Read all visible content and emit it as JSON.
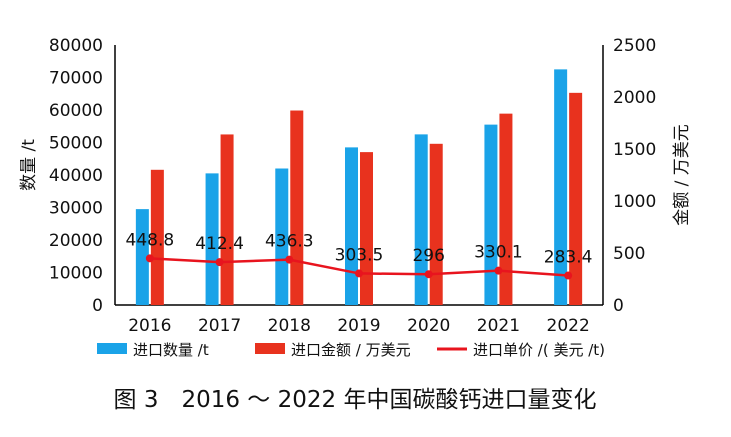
{
  "chart_data": {
    "type": "bar",
    "categories": [
      "2016",
      "2017",
      "2018",
      "2019",
      "2020",
      "2021",
      "2022"
    ],
    "series": [
      {
        "name": "进口数量 /t",
        "axis": "left",
        "kind": "bar",
        "color": "#1aa3e8",
        "values": [
          29500,
          40500,
          42000,
          48500,
          52500,
          55500,
          72500
        ]
      },
      {
        "name": "进口金额 / 万美元",
        "axis": "right",
        "kind": "bar",
        "color": "#e8321e",
        "values": [
          1300,
          1640,
          1870,
          1470,
          1550,
          1840,
          2040
        ]
      },
      {
        "name": "进口单价 /( 美元 /t)",
        "axis": "right",
        "kind": "line",
        "color": "#e8141e",
        "values": [
          448.8,
          412.4,
          436.3,
          303.5,
          296,
          330.1,
          283.4
        ],
        "labels": [
          "448.8",
          "412.4",
          "436.3",
          "303.5",
          "296",
          "330.1",
          "283.4"
        ]
      }
    ],
    "ylabel": "数量 /t",
    "ylabel_right": "金额 / 万美元",
    "ylim": [
      0,
      80000
    ],
    "ylim_right": [
      0,
      2500
    ],
    "yticks": [
      "0",
      "10000",
      "20000",
      "30000",
      "40000",
      "50000",
      "60000",
      "70000",
      "80000"
    ],
    "yticks_values": [
      0,
      10000,
      20000,
      30000,
      40000,
      50000,
      60000,
      70000,
      80000
    ],
    "yticks_right": [
      "0",
      "500",
      "1000",
      "1500",
      "2000",
      "2500"
    ],
    "yticks_right_values": [
      0,
      500,
      1000,
      1500,
      2000,
      2500
    ],
    "legend": "bottom",
    "grid": false
  },
  "caption": "图 3　2016 ～ 2022 年中国碳酸钙进口量变化"
}
